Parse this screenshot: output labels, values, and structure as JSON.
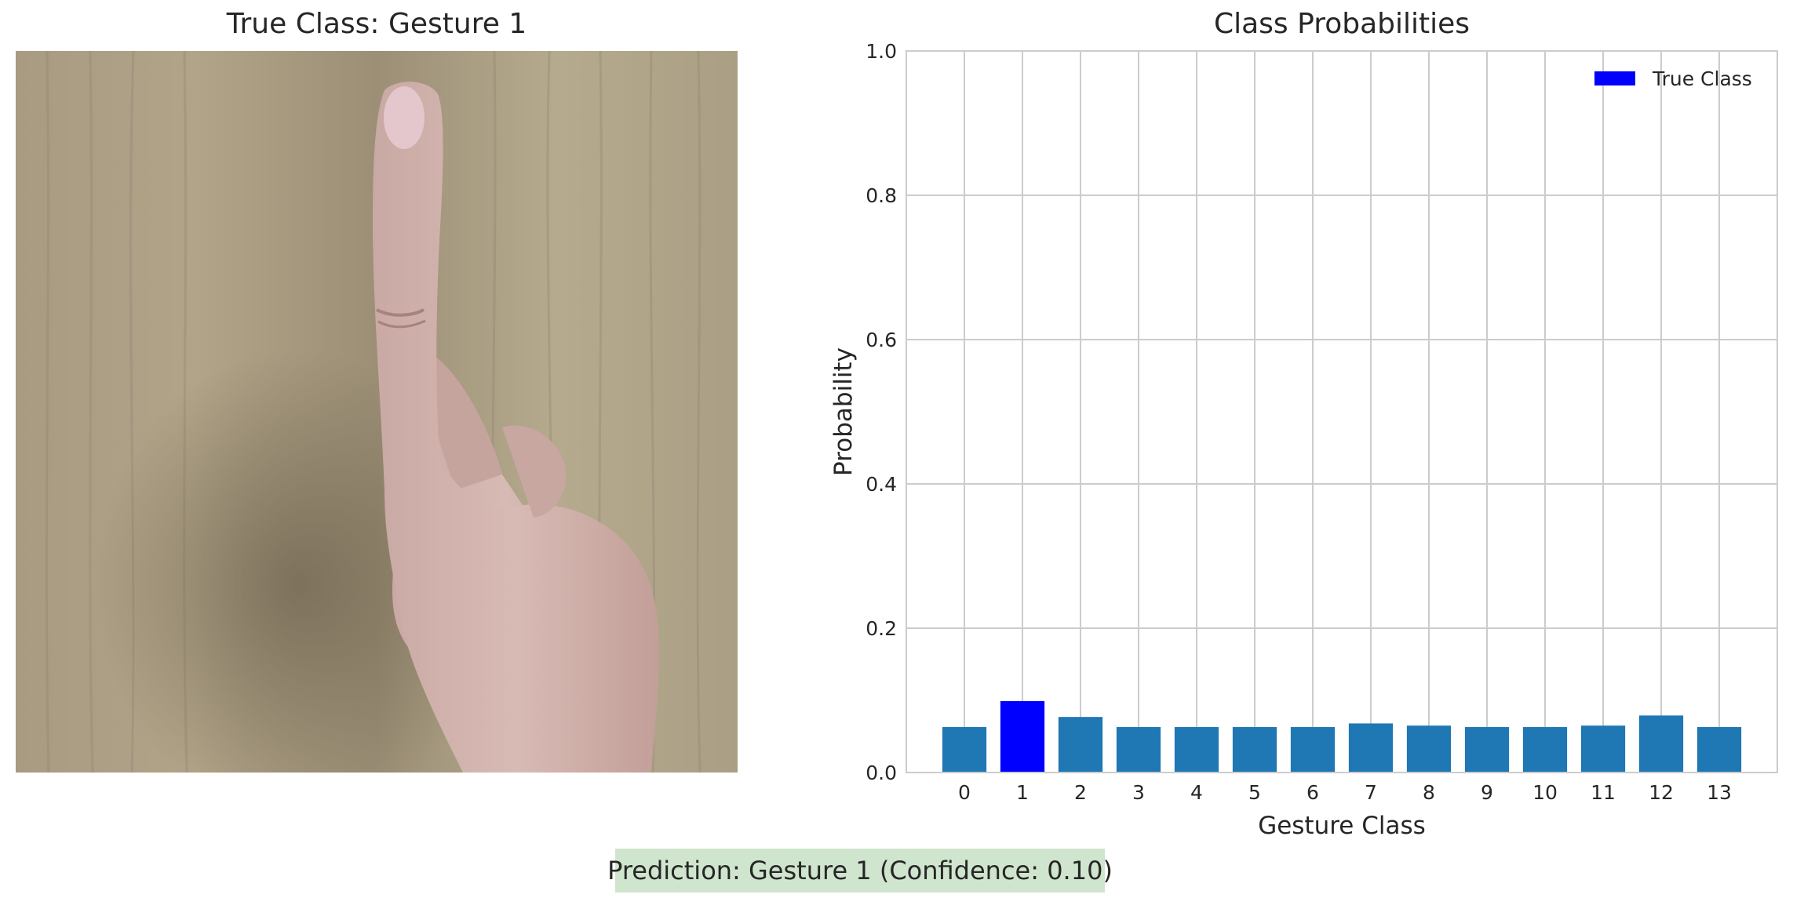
{
  "image_panel": {
    "title": "True Class: Gesture 1",
    "image_description_icon": "raised-index-finger-hand-photo"
  },
  "prediction_box": {
    "text": "Prediction: Gesture 1 (Confidence: 0.10)",
    "background_color": "#cfe5cd"
  },
  "chart_data": {
    "type": "bar",
    "title": "Class Probabilities",
    "xlabel": "Gesture Class",
    "ylabel": "Probability",
    "categories": [
      "0",
      "1",
      "2",
      "3",
      "4",
      "5",
      "6",
      "7",
      "8",
      "9",
      "10",
      "11",
      "12",
      "13"
    ],
    "values": [
      0.063,
      0.099,
      0.077,
      0.063,
      0.063,
      0.063,
      0.063,
      0.068,
      0.065,
      0.063,
      0.063,
      0.065,
      0.079,
      0.063
    ],
    "highlight_index": 1,
    "bar_color": "#1f77b4",
    "highlight_color": "#0000ff",
    "ylim": [
      0,
      1.0
    ],
    "yticks": [
      0.0,
      0.2,
      0.4,
      0.6,
      0.8,
      1.0
    ],
    "ytick_labels": [
      "0.0",
      "0.2",
      "0.4",
      "0.6",
      "0.8",
      "1.0"
    ],
    "grid": true,
    "legend": {
      "position": "top-right",
      "entries": [
        {
          "label": "True Class",
          "color": "#0000ff"
        }
      ]
    }
  }
}
